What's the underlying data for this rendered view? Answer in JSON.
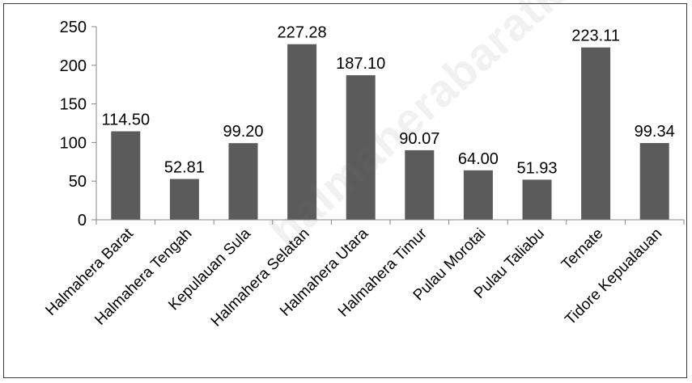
{
  "watermark": "halmaherabaratkab.bps.go.id",
  "chart_data": {
    "type": "bar",
    "categories": [
      "Halmahera Barat",
      "Halmahera Tengah",
      "Kepulauan Sula",
      "Halmahera Selatan",
      "Halmahera Utara",
      "Halmahera Timur",
      "Pulau Morotai",
      "Pulau Taliabu",
      "Ternate",
      "Tidore Kepualauan"
    ],
    "values": [
      114.5,
      52.81,
      99.2,
      227.28,
      187.1,
      90.07,
      64.0,
      51.93,
      223.11,
      99.34
    ],
    "data_labels": [
      "114.50",
      "52.81",
      "99.20",
      "227.28",
      "187.10",
      "90.07",
      "64.00",
      "51.93",
      "223.11",
      "99.34"
    ],
    "ylim": [
      0,
      250
    ],
    "yticks": [
      0,
      50,
      100,
      150,
      200,
      250
    ],
    "grid": false,
    "legend": "none",
    "bar_color": "#5b5b5b",
    "axis_color": "#868686"
  }
}
